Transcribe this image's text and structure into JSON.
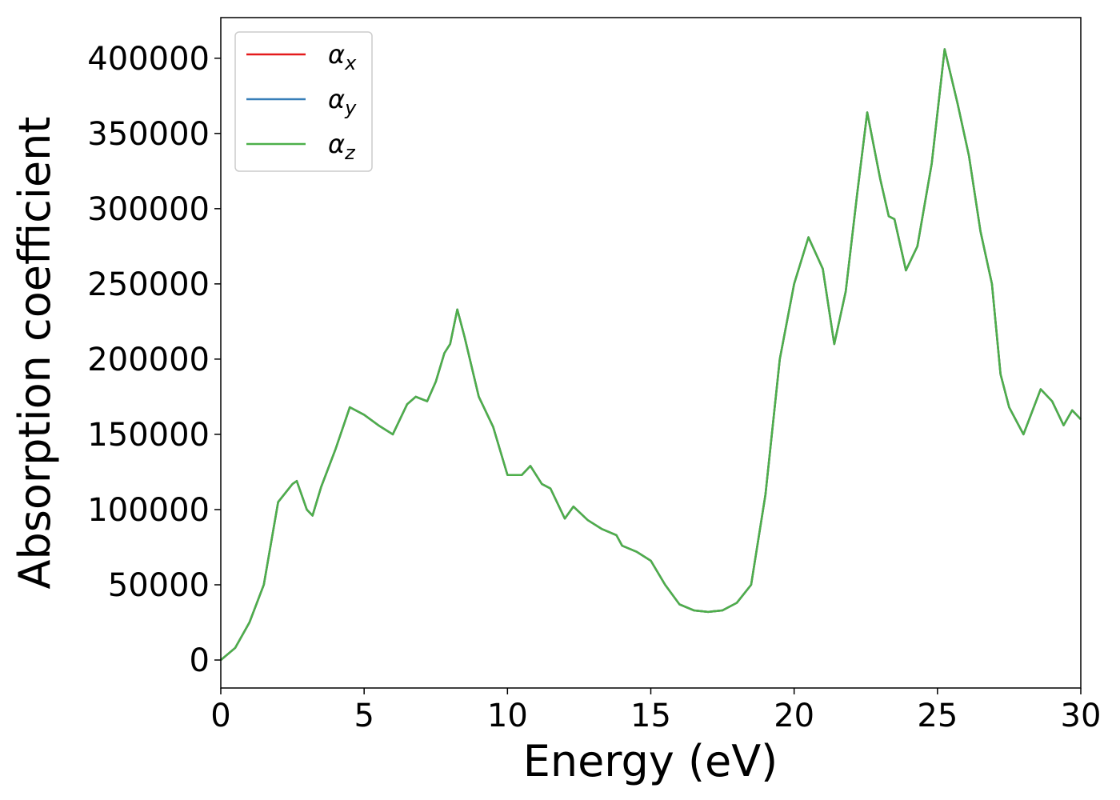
{
  "chart_data": {
    "type": "line",
    "xlabel": "Energy (eV)",
    "ylabel": "Absorption coefficient",
    "x": [
      0,
      0.5,
      1.0,
      1.5,
      2.0,
      2.5,
      2.65,
      3.0,
      3.2,
      3.5,
      4.0,
      4.5,
      5.0,
      5.5,
      6.0,
      6.5,
      6.8,
      7.2,
      7.5,
      7.8,
      8.0,
      8.25,
      8.5,
      9.0,
      9.5,
      10.0,
      10.5,
      10.8,
      11.2,
      11.5,
      12.0,
      12.3,
      12.8,
      13.3,
      13.8,
      14.0,
      14.5,
      15.0,
      15.5,
      16.0,
      16.5,
      17.0,
      17.5,
      18.0,
      18.5,
      19.0,
      19.5,
      20.0,
      20.5,
      21.0,
      21.4,
      21.8,
      22.2,
      22.55,
      23.0,
      23.3,
      23.5,
      23.9,
      24.3,
      24.8,
      25.25,
      25.7,
      26.1,
      26.5,
      26.9,
      27.2,
      27.5,
      28.0,
      28.6,
      29.0,
      29.4,
      29.7,
      30.0
    ],
    "series": [
      {
        "name": "αx",
        "color": "#e41a1c",
        "values": [
          0,
          8000,
          25000,
          50000,
          105000,
          117000,
          119000,
          100000,
          96000,
          115000,
          140000,
          168000,
          163000,
          156000,
          150000,
          170000,
          175000,
          172000,
          185000,
          204000,
          210000,
          233000,
          215000,
          175000,
          155000,
          123000,
          123000,
          129000,
          117000,
          114000,
          94000,
          102000,
          93000,
          87000,
          83000,
          76000,
          72000,
          66000,
          50000,
          37000,
          33000,
          32000,
          33000,
          38000,
          50000,
          110000,
          200000,
          250000,
          281000,
          260000,
          210000,
          245000,
          310000,
          364000,
          320000,
          295000,
          293000,
          259000,
          275000,
          330000,
          406000,
          370000,
          335000,
          285000,
          250000,
          190000,
          168000,
          150000,
          180000,
          172000,
          156000,
          166000,
          160000
        ]
      },
      {
        "name": "αy",
        "color": "#377eb8",
        "values": [
          0,
          8000,
          25000,
          50000,
          105000,
          117000,
          119000,
          100000,
          96000,
          115000,
          140000,
          168000,
          163000,
          156000,
          150000,
          170000,
          175000,
          172000,
          185000,
          204000,
          210000,
          233000,
          215000,
          175000,
          155000,
          123000,
          123000,
          129000,
          117000,
          114000,
          94000,
          102000,
          93000,
          87000,
          83000,
          76000,
          72000,
          66000,
          50000,
          37000,
          33000,
          32000,
          33000,
          38000,
          50000,
          110000,
          200000,
          250000,
          281000,
          260000,
          210000,
          245000,
          310000,
          364000,
          320000,
          295000,
          293000,
          259000,
          275000,
          330000,
          406000,
          370000,
          335000,
          285000,
          250000,
          190000,
          168000,
          150000,
          180000,
          172000,
          156000,
          166000,
          160000
        ]
      },
      {
        "name": "αz",
        "color": "#4daf4a",
        "values": [
          0,
          8000,
          25000,
          50000,
          105000,
          117000,
          119000,
          100000,
          96000,
          115000,
          140000,
          168000,
          163000,
          156000,
          150000,
          170000,
          175000,
          172000,
          185000,
          204000,
          210000,
          233000,
          215000,
          175000,
          155000,
          123000,
          123000,
          129000,
          117000,
          114000,
          94000,
          102000,
          93000,
          87000,
          83000,
          76000,
          72000,
          66000,
          50000,
          37000,
          33000,
          32000,
          33000,
          38000,
          50000,
          110000,
          200000,
          250000,
          281000,
          260000,
          210000,
          245000,
          310000,
          364000,
          320000,
          295000,
          293000,
          259000,
          275000,
          330000,
          406000,
          370000,
          335000,
          285000,
          250000,
          190000,
          168000,
          150000,
          180000,
          172000,
          156000,
          166000,
          160000
        ]
      }
    ],
    "xlim": [
      0,
      30
    ],
    "xticks": [
      0,
      5,
      10,
      15,
      20,
      25,
      30
    ],
    "ylim": [
      -18600,
      427000
    ],
    "yticks": [
      0,
      50000,
      100000,
      150000,
      200000,
      250000,
      300000,
      350000,
      400000
    ],
    "legend": "upper left",
    "grid": false
  }
}
